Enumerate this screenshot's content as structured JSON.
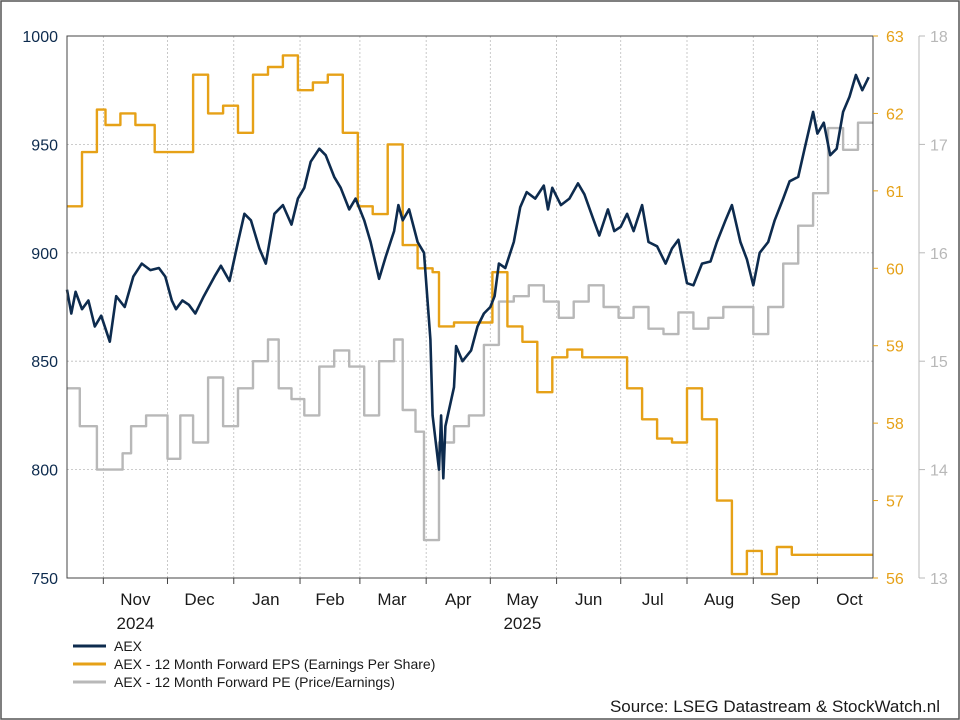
{
  "chart_data": {
    "type": "line",
    "source": "Source: LSEG Datastream & StockWatch.nl",
    "x_months": [
      "Nov",
      "Dec",
      "Jan",
      "Feb",
      "Mar",
      "Apr",
      "May",
      "Jun",
      "Jul",
      "Aug",
      "Sep",
      "Oct"
    ],
    "x_years": [
      {
        "label": "2024",
        "month_index": 0
      },
      {
        "label": "2025",
        "month_index": 6
      }
    ],
    "x_range": [
      "2024-10-15",
      "2025-10-27"
    ],
    "axes": {
      "left": {
        "min": 750,
        "max": 1000,
        "ticks": [
          "750",
          "800",
          "850",
          "900",
          "950",
          "1000"
        ],
        "color": "#0d2b4e"
      },
      "right1": {
        "min": 56,
        "max": 63,
        "ticks": [
          "56",
          "57",
          "58",
          "59",
          "60",
          "61",
          "62",
          "63"
        ],
        "color": "#e6a117"
      },
      "right2": {
        "min": 13,
        "max": 18,
        "ticks": [
          "13",
          "14",
          "15",
          "16",
          "17",
          "18"
        ],
        "color": "#b8b8b8"
      }
    },
    "grid": true,
    "legend_position": "bottom-left",
    "series": [
      {
        "name": "AEX",
        "axis": "left",
        "color": "#0d2b4e",
        "step": false,
        "points": [
          [
            "2024-10-15",
            883
          ],
          [
            "2024-10-17",
            872
          ],
          [
            "2024-10-19",
            882
          ],
          [
            "2024-10-22",
            874
          ],
          [
            "2024-10-25",
            878
          ],
          [
            "2024-10-28",
            866
          ],
          [
            "2024-10-31",
            871
          ],
          [
            "2024-11-04",
            859
          ],
          [
            "2024-11-07",
            880
          ],
          [
            "2024-11-11",
            875
          ],
          [
            "2024-11-15",
            889
          ],
          [
            "2024-11-19",
            895
          ],
          [
            "2024-11-23",
            892
          ],
          [
            "2024-11-27",
            893
          ],
          [
            "2024-11-30",
            889
          ],
          [
            "2024-12-03",
            878
          ],
          [
            "2024-12-05",
            874
          ],
          [
            "2024-12-08",
            878
          ],
          [
            "2024-12-11",
            876
          ],
          [
            "2024-12-14",
            872
          ],
          [
            "2024-12-18",
            880
          ],
          [
            "2024-12-23",
            889
          ],
          [
            "2024-12-26",
            894
          ],
          [
            "2024-12-30",
            887
          ],
          [
            "2025-01-03",
            905
          ],
          [
            "2025-01-06",
            918
          ],
          [
            "2025-01-09",
            915
          ],
          [
            "2025-01-13",
            902
          ],
          [
            "2025-01-16",
            895
          ],
          [
            "2025-01-20",
            918
          ],
          [
            "2025-01-24",
            922
          ],
          [
            "2025-01-28",
            913
          ],
          [
            "2025-01-31",
            925
          ],
          [
            "2025-02-03",
            930
          ],
          [
            "2025-02-06",
            942
          ],
          [
            "2025-02-10",
            948
          ],
          [
            "2025-02-13",
            945
          ],
          [
            "2025-02-17",
            935
          ],
          [
            "2025-02-20",
            930
          ],
          [
            "2025-02-24",
            920
          ],
          [
            "2025-02-27",
            925
          ],
          [
            "2025-03-03",
            915
          ],
          [
            "2025-03-06",
            905
          ],
          [
            "2025-03-10",
            888
          ],
          [
            "2025-03-13",
            898
          ],
          [
            "2025-03-17",
            910
          ],
          [
            "2025-03-19",
            922
          ],
          [
            "2025-03-21",
            915
          ],
          [
            "2025-03-24",
            920
          ],
          [
            "2025-03-28",
            905
          ],
          [
            "2025-03-31",
            900
          ],
          [
            "2025-04-03",
            860
          ],
          [
            "2025-04-04",
            825
          ],
          [
            "2025-04-07",
            800
          ],
          [
            "2025-04-08",
            825
          ],
          [
            "2025-04-09",
            796
          ],
          [
            "2025-04-10",
            820
          ],
          [
            "2025-04-14",
            838
          ],
          [
            "2025-04-15",
            857
          ],
          [
            "2025-04-18",
            850
          ],
          [
            "2025-04-22",
            855
          ],
          [
            "2025-04-25",
            866
          ],
          [
            "2025-04-28",
            872
          ],
          [
            "2025-05-01",
            875
          ],
          [
            "2025-05-03",
            880
          ],
          [
            "2025-05-05",
            895
          ],
          [
            "2025-05-08",
            893
          ],
          [
            "2025-05-12",
            905
          ],
          [
            "2025-05-15",
            921
          ],
          [
            "2025-05-18",
            928
          ],
          [
            "2025-05-22",
            925
          ],
          [
            "2025-05-26",
            931
          ],
          [
            "2025-05-28",
            920
          ],
          [
            "2025-05-30",
            930
          ],
          [
            "2025-06-03",
            922
          ],
          [
            "2025-06-07",
            925
          ],
          [
            "2025-06-11",
            932
          ],
          [
            "2025-06-14",
            927
          ],
          [
            "2025-06-18",
            916
          ],
          [
            "2025-06-21",
            908
          ],
          [
            "2025-06-25",
            920
          ],
          [
            "2025-06-28",
            910
          ],
          [
            "2025-07-01",
            912
          ],
          [
            "2025-07-04",
            918
          ],
          [
            "2025-07-07",
            910
          ],
          [
            "2025-07-11",
            922
          ],
          [
            "2025-07-14",
            905
          ],
          [
            "2025-07-18",
            903
          ],
          [
            "2025-07-22",
            895
          ],
          [
            "2025-07-25",
            902
          ],
          [
            "2025-07-28",
            906
          ],
          [
            "2025-08-01",
            886
          ],
          [
            "2025-08-04",
            885
          ],
          [
            "2025-08-08",
            895
          ],
          [
            "2025-08-12",
            896
          ],
          [
            "2025-08-15",
            905
          ],
          [
            "2025-08-19",
            915
          ],
          [
            "2025-08-22",
            922
          ],
          [
            "2025-08-26",
            905
          ],
          [
            "2025-08-29",
            897
          ],
          [
            "2025-09-01",
            885
          ],
          [
            "2025-09-04",
            900
          ],
          [
            "2025-09-08",
            905
          ],
          [
            "2025-09-11",
            915
          ],
          [
            "2025-09-15",
            925
          ],
          [
            "2025-09-18",
            933
          ],
          [
            "2025-09-22",
            935
          ],
          [
            "2025-09-25",
            948
          ],
          [
            "2025-09-29",
            965
          ],
          [
            "2025-10-01",
            955
          ],
          [
            "2025-10-04",
            960
          ],
          [
            "2025-10-07",
            945
          ],
          [
            "2025-10-10",
            948
          ],
          [
            "2025-10-13",
            965
          ],
          [
            "2025-10-16",
            972
          ],
          [
            "2025-10-19",
            982
          ],
          [
            "2025-10-22",
            975
          ],
          [
            "2025-10-25",
            981
          ]
        ]
      },
      {
        "name": "AEX - 12 Month Forward EPS (Earnings Per Share)",
        "axis": "right1",
        "color": "#e6a117",
        "step": true,
        "points": [
          [
            "2024-10-15",
            60.8
          ],
          [
            "2024-10-22",
            61.5
          ],
          [
            "2024-10-29",
            62.05
          ],
          [
            "2024-11-02",
            61.85
          ],
          [
            "2024-11-09",
            62.0
          ],
          [
            "2024-11-16",
            61.85
          ],
          [
            "2024-11-25",
            61.5
          ],
          [
            "2024-12-13",
            62.5
          ],
          [
            "2024-12-20",
            62.0
          ],
          [
            "2024-12-27",
            62.1
          ],
          [
            "2025-01-03",
            61.75
          ],
          [
            "2025-01-10",
            62.5
          ],
          [
            "2025-01-17",
            62.6
          ],
          [
            "2025-01-24",
            62.75
          ],
          [
            "2025-01-31",
            62.3
          ],
          [
            "2025-02-07",
            62.4
          ],
          [
            "2025-02-14",
            62.5
          ],
          [
            "2025-02-21",
            61.75
          ],
          [
            "2025-02-28",
            60.8
          ],
          [
            "2025-03-07",
            60.7
          ],
          [
            "2025-03-14",
            61.6
          ],
          [
            "2025-03-21",
            60.3
          ],
          [
            "2025-03-28",
            60.0
          ],
          [
            "2025-04-04",
            59.95
          ],
          [
            "2025-04-07",
            59.25
          ],
          [
            "2025-04-14",
            59.3
          ],
          [
            "2025-04-21",
            59.3
          ],
          [
            "2025-04-28",
            59.3
          ],
          [
            "2025-05-02",
            59.95
          ],
          [
            "2025-05-09",
            59.25
          ],
          [
            "2025-05-16",
            59.05
          ],
          [
            "2025-05-23",
            58.4
          ],
          [
            "2025-05-30",
            58.85
          ],
          [
            "2025-06-06",
            58.95
          ],
          [
            "2025-06-13",
            58.85
          ],
          [
            "2025-06-27",
            58.85
          ],
          [
            "2025-07-04",
            58.45
          ],
          [
            "2025-07-11",
            58.05
          ],
          [
            "2025-07-18",
            57.8
          ],
          [
            "2025-07-25",
            57.75
          ],
          [
            "2025-08-01",
            58.45
          ],
          [
            "2025-08-08",
            58.05
          ],
          [
            "2025-08-15",
            57.0
          ],
          [
            "2025-08-22",
            56.05
          ],
          [
            "2025-08-29",
            56.35
          ],
          [
            "2025-09-05",
            56.05
          ],
          [
            "2025-09-12",
            56.4
          ],
          [
            "2025-09-19",
            56.3
          ],
          [
            "2025-09-26",
            56.3
          ]
        ]
      },
      {
        "name": "AEX - 12 Month Forward PE (Price/Earnings)",
        "axis": "right2",
        "color": "#b8b8b8",
        "step": true,
        "points": [
          [
            "2024-10-15",
            14.75
          ],
          [
            "2024-10-21",
            14.4
          ],
          [
            "2024-10-29",
            14.0
          ],
          [
            "2024-11-10",
            14.15
          ],
          [
            "2024-11-14",
            14.4
          ],
          [
            "2024-11-21",
            14.5
          ],
          [
            "2024-12-01",
            14.1
          ],
          [
            "2024-12-07",
            14.5
          ],
          [
            "2024-12-13",
            14.25
          ],
          [
            "2024-12-20",
            14.85
          ],
          [
            "2024-12-27",
            14.4
          ],
          [
            "2025-01-03",
            14.75
          ],
          [
            "2025-01-10",
            15.0
          ],
          [
            "2025-01-17",
            15.2
          ],
          [
            "2025-01-22",
            14.75
          ],
          [
            "2025-01-28",
            14.65
          ],
          [
            "2025-02-03",
            14.5
          ],
          [
            "2025-02-10",
            14.95
          ],
          [
            "2025-02-17",
            15.1
          ],
          [
            "2025-02-24",
            14.95
          ],
          [
            "2025-03-03",
            14.5
          ],
          [
            "2025-03-10",
            15.0
          ],
          [
            "2025-03-17",
            15.2
          ],
          [
            "2025-03-21",
            14.55
          ],
          [
            "2025-03-27",
            14.35
          ],
          [
            "2025-03-31",
            13.35
          ],
          [
            "2025-04-07",
            14.25
          ],
          [
            "2025-04-14",
            14.4
          ],
          [
            "2025-04-21",
            14.5
          ],
          [
            "2025-04-28",
            15.15
          ],
          [
            "2025-05-05",
            15.55
          ],
          [
            "2025-05-12",
            15.6
          ],
          [
            "2025-05-19",
            15.7
          ],
          [
            "2025-05-26",
            15.55
          ],
          [
            "2025-06-02",
            15.4
          ],
          [
            "2025-06-09",
            15.55
          ],
          [
            "2025-06-16",
            15.7
          ],
          [
            "2025-06-23",
            15.5
          ],
          [
            "2025-06-30",
            15.4
          ],
          [
            "2025-07-07",
            15.5
          ],
          [
            "2025-07-14",
            15.3
          ],
          [
            "2025-07-21",
            15.25
          ],
          [
            "2025-07-28",
            15.45
          ],
          [
            "2025-08-04",
            15.3
          ],
          [
            "2025-08-11",
            15.4
          ],
          [
            "2025-08-18",
            15.5
          ],
          [
            "2025-08-25",
            15.5
          ],
          [
            "2025-09-01",
            15.25
          ],
          [
            "2025-09-08",
            15.5
          ],
          [
            "2025-09-15",
            15.9
          ],
          [
            "2025-09-22",
            16.25
          ],
          [
            "2025-09-29",
            16.55
          ],
          [
            "2025-10-06",
            17.15
          ],
          [
            "2025-10-13",
            16.95
          ],
          [
            "2025-10-20",
            17.2
          ]
        ]
      }
    ]
  }
}
